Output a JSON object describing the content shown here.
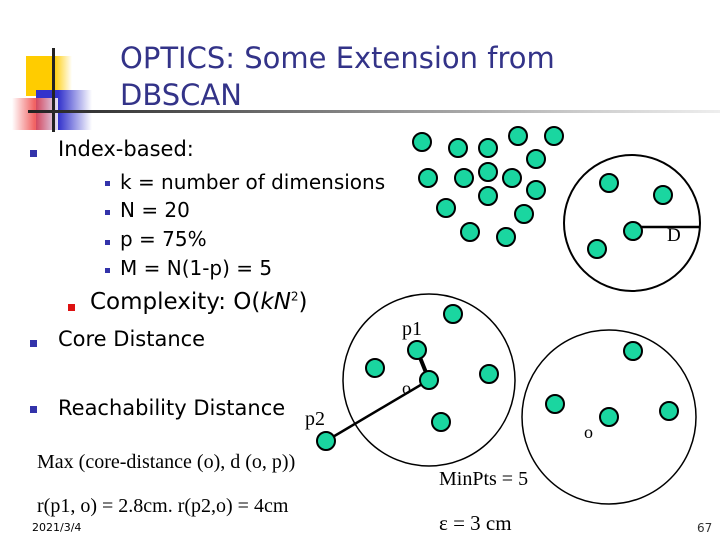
{
  "title": "OPTICS: Some Extension from DBSCAN",
  "bullets": {
    "index_based": "Index-based:",
    "sub": [
      "k = number of dimensions",
      "N = 20",
      "p = 75%",
      "M = N(1-p) = 5"
    ],
    "complexity_label": "Complexity:  O(",
    "complexity_k": "kN",
    "complexity_exp": "2",
    "complexity_close": ")",
    "core_distance": "Core Distance",
    "reachability": "Reachability Distance"
  },
  "formula": "Max (core-distance (o), d (o, p))",
  "example": "r(p1, o) = 2.8cm.  r(p2,o) = 4cm",
  "diagram": {
    "label_d": "D",
    "label_p1": "p1",
    "label_p2": "p2",
    "label_o1": "o",
    "label_o2": "o",
    "minpts": "MinPts = 5",
    "epsilon": "ε  = 3 cm",
    "point_color": "#1ad6a0"
  },
  "footer": {
    "date": "2021/3/4",
    "page": "67"
  },
  "colors": {
    "title": "#333388",
    "bullet": "#3333aa",
    "accent_bullet": "#dd1111"
  }
}
